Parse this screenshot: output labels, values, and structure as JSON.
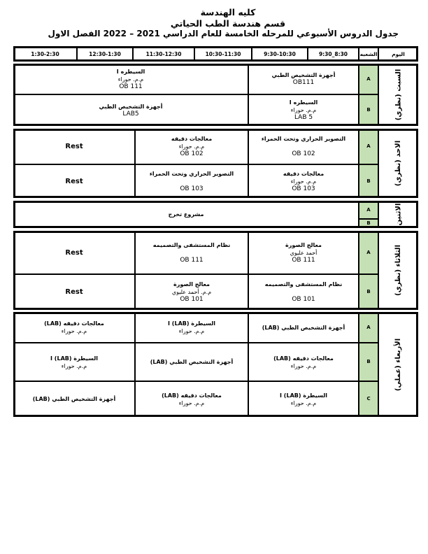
{
  "header": {
    "college": "كليه الهندسة",
    "department": "قسم هندسة الطب الحياتي",
    "schedule_title": "جدول الدروس الأسبوعي للمرحله الخامسة للعام الدراسي 2021 – 2022 الفصل الاول"
  },
  "table": {
    "day_header": "اليوم",
    "section_header": "الشعبه",
    "time_slots": [
      "8:30_9:30",
      "9:30-10:30",
      "10:30-11:30",
      "11:30-12:30",
      "12:30-1:30",
      "1:30-2:30"
    ],
    "section_color": "#c5e0b4",
    "days": [
      {
        "label": "السبت (نظري)",
        "rows": [
          {
            "section": "A",
            "cells": [
              {
                "blocks": 1,
                "title": "أجهزة التشخيص الطبي",
                "lines": [
                  "OB111"
                ]
              },
              {
                "blocks": 2,
                "title": "السيطره I",
                "lines": [
                  "م.م. حوراء",
                  "OB 111"
                ]
              }
            ]
          },
          {
            "section": "B",
            "cells": [
              {
                "blocks": 1,
                "title": "السيطره I",
                "lines": [
                  "م.م. حوراء",
                  "LAB 5"
                ]
              },
              {
                "blocks": 2,
                "title": "أجهزة التشخيص الطبي",
                "lines": [
                  "LAB5"
                ]
              }
            ]
          }
        ]
      },
      {
        "label": "الاحد (نظري)",
        "rows": [
          {
            "section": "A",
            "cells": [
              {
                "blocks": 1,
                "title": "التصوير الحراري وتحت الحمراء",
                "lines": [
                  "",
                  "OB 102"
                ]
              },
              {
                "blocks": 1,
                "title": "معالجات دقيقه",
                "lines": [
                  "م.م. حوراء",
                  "OB 102"
                ]
              },
              {
                "blocks": 1,
                "title": "Rest",
                "lines": [],
                "rest": true
              }
            ]
          },
          {
            "section": "B",
            "cells": [
              {
                "blocks": 1,
                "title": "معالجات دقيقه",
                "lines": [
                  "م.م. حوراء",
                  "OB 103"
                ]
              },
              {
                "blocks": 1,
                "title": "التصوير الحراري وتحت الحمراء",
                "lines": [
                  "",
                  "OB 103"
                ]
              },
              {
                "blocks": 1,
                "title": "Rest",
                "lines": [],
                "rest": true
              }
            ]
          }
        ]
      },
      {
        "label": "الاثنين",
        "merged": {
          "title": "مشروع تخرج"
        },
        "rows": [
          {
            "section": "A",
            "cells": []
          },
          {
            "section": "B",
            "cells": []
          }
        ]
      },
      {
        "label": "الثلاثاء (نظري)",
        "rows": [
          {
            "section": "A",
            "cells": [
              {
                "blocks": 1,
                "title": "معالج الصورة",
                "lines": [
                  "أحمد عليوي",
                  "OB 111"
                ]
              },
              {
                "blocks": 1,
                "title": "نظام المستشفى والتصميمه",
                "lines": [
                  "",
                  "OB 111"
                ]
              },
              {
                "blocks": 1,
                "title": "Rest",
                "lines": [],
                "rest": true
              }
            ]
          },
          {
            "section": "B",
            "cells": [
              {
                "blocks": 1,
                "title": "نظام المستشفى والتصميمه",
                "lines": [
                  "",
                  "OB 101"
                ]
              },
              {
                "blocks": 1,
                "title": "معالج الصورة",
                "lines": [
                  "م.م. أحمد عليوي",
                  "OB 101"
                ]
              },
              {
                "blocks": 1,
                "title": "Rest",
                "lines": [],
                "rest": true
              }
            ]
          }
        ]
      },
      {
        "label": "الأربعاء (عملي)",
        "rows": [
          {
            "section": "A",
            "cells": [
              {
                "blocks": 1,
                "title": "أجهزة التشخيص الطبي (LAB)",
                "lines": []
              },
              {
                "blocks": 1,
                "title": "السيطرة I (LAB)",
                "lines": [
                  "م.م. حوراء"
                ]
              },
              {
                "blocks": 1,
                "title": "معالجات دقيقه (LAB)",
                "lines": [
                  "م.م. حوراء"
                ]
              }
            ]
          },
          {
            "section": "B",
            "cells": [
              {
                "blocks": 1,
                "title": "معالجات دقيقه (LAB)",
                "lines": [
                  "م.م. حوراء"
                ]
              },
              {
                "blocks": 1,
                "title": "أجهزة التشخيص الطبي (LAB)",
                "lines": []
              },
              {
                "blocks": 1,
                "title": "السيطرة I (LAB)",
                "lines": [
                  "م.م. حوراء"
                ]
              }
            ]
          },
          {
            "section": "C",
            "cells": [
              {
                "blocks": 1,
                "title": "السيطرة I (LAB)",
                "lines": [
                  "م.م. حوراء"
                ]
              },
              {
                "blocks": 1,
                "title": "معالجات دقيقه (LAB)",
                "lines": [
                  "م.م. حوراء"
                ]
              },
              {
                "blocks": 1,
                "title": "أجهزة التشخيص الطبي (LAB)",
                "lines": []
              }
            ]
          }
        ]
      }
    ]
  }
}
